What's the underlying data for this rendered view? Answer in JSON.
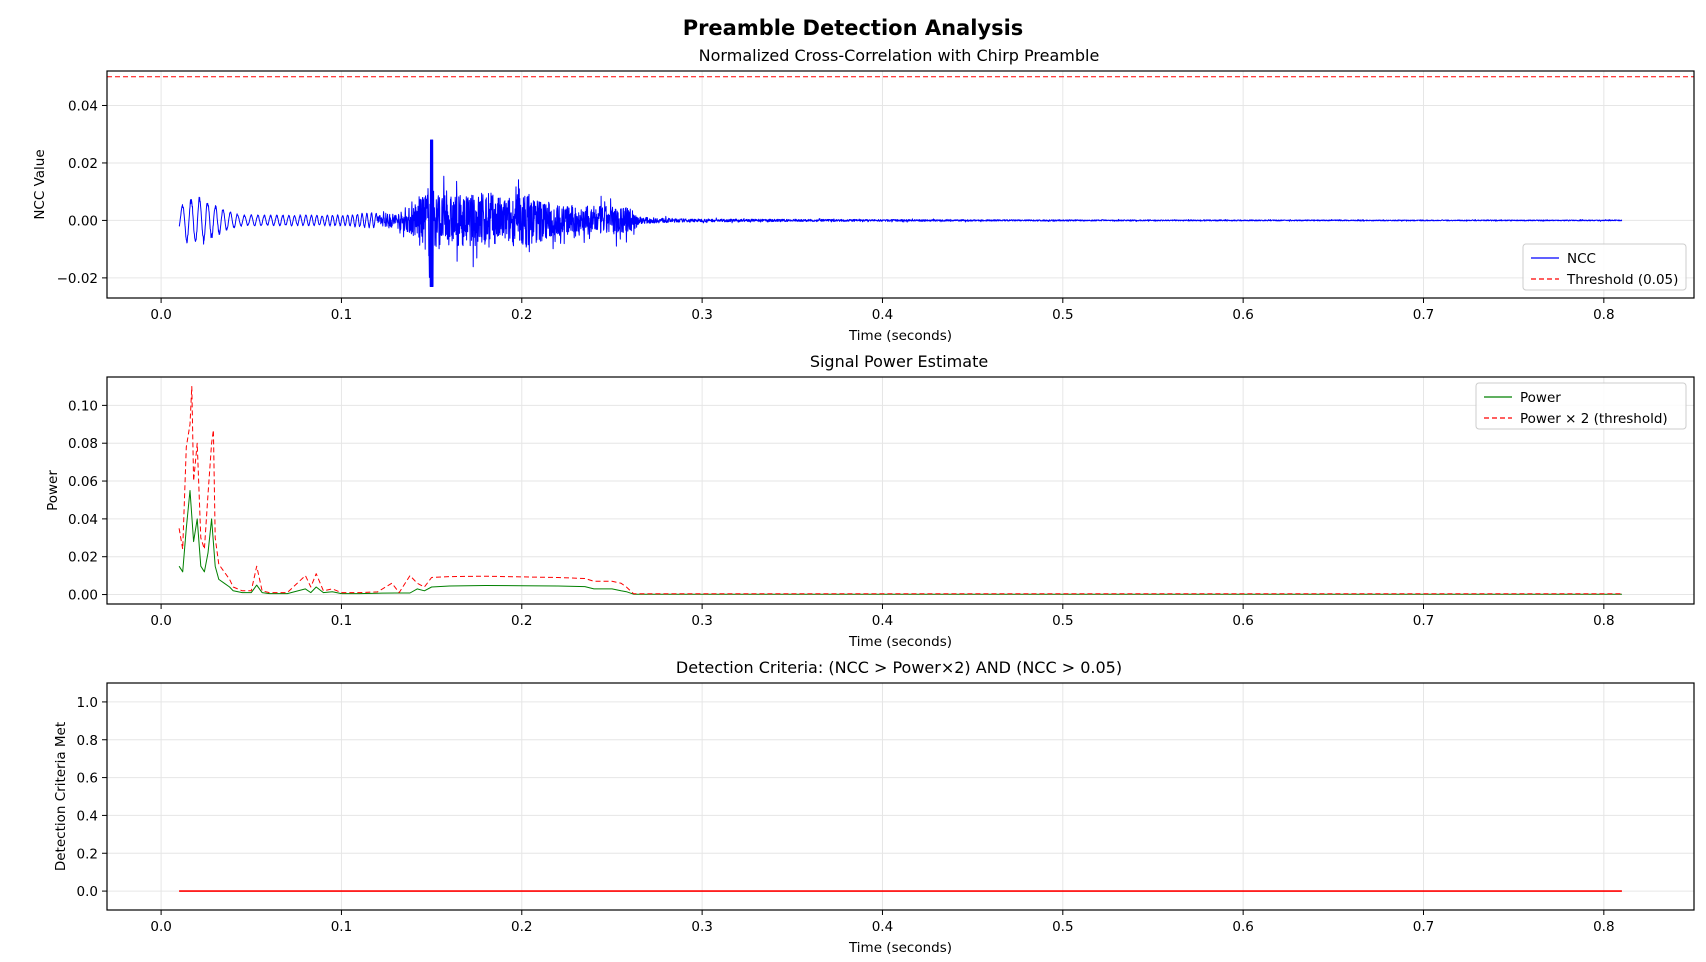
{
  "figure": {
    "title": "Preamble Detection Analysis"
  },
  "chart_data": [
    {
      "type": "line",
      "title": "Normalized Cross-Correlation with Chirp Preamble",
      "xlabel": "Time (seconds)",
      "ylabel": "NCC Value",
      "xlim": [
        -0.03,
        0.85
      ],
      "ylim": [
        -0.027,
        0.052
      ],
      "xticks": [
        0.0,
        0.1,
        0.2,
        0.3,
        0.4,
        0.5,
        0.6,
        0.7,
        0.8
      ],
      "xtick_labels": [
        "0.0",
        "0.1",
        "0.2",
        "0.3",
        "0.4",
        "0.5",
        "0.6",
        "0.7",
        "0.8"
      ],
      "yticks": [
        -0.02,
        0.0,
        0.02,
        0.04
      ],
      "ytick_labels": [
        "−0.02",
        "0.00",
        "0.02",
        "0.04"
      ],
      "grid": true,
      "legend": "lower-right",
      "series": [
        {
          "name": "NCC",
          "color": "#0000ff",
          "style": "solid",
          "x_range": [
            0.01,
            0.81
          ],
          "envelope": [
            [
              0.01,
              0.004
            ],
            [
              0.014,
              0.008
            ],
            [
              0.02,
              0.009
            ],
            [
              0.025,
              0.008
            ],
            [
              0.03,
              0.006
            ],
            [
              0.035,
              0.004
            ],
            [
              0.045,
              0.002
            ],
            [
              0.06,
              0.002
            ],
            [
              0.08,
              0.002
            ],
            [
              0.1,
              0.002
            ],
            [
              0.12,
              0.003
            ],
            [
              0.135,
              0.006
            ],
            [
              0.145,
              0.015
            ],
            [
              0.15,
              0.028
            ],
            [
              0.155,
              0.016
            ],
            [
              0.17,
              0.016
            ],
            [
              0.18,
              0.018
            ],
            [
              0.19,
              0.014
            ],
            [
              0.2,
              0.018
            ],
            [
              0.21,
              0.014
            ],
            [
              0.22,
              0.01
            ],
            [
              0.24,
              0.009
            ],
            [
              0.255,
              0.009
            ],
            [
              0.262,
              0.007
            ],
            [
              0.266,
              0.002
            ],
            [
              0.29,
              0.001
            ],
            [
              0.35,
              0.0007
            ],
            [
              0.5,
              0.0004
            ],
            [
              0.7,
              0.0003
            ],
            [
              0.81,
              0.0003
            ]
          ],
          "peak_max": 0.028,
          "peak_min": -0.023
        },
        {
          "name": "Threshold (0.05)",
          "color": "#ff0000",
          "style": "dashed",
          "y": 0.05
        }
      ]
    },
    {
      "type": "line",
      "title": "Signal Power Estimate",
      "xlabel": "Time (seconds)",
      "ylabel": "Power",
      "xlim": [
        -0.03,
        0.85
      ],
      "ylim": [
        -0.005,
        0.115
      ],
      "xticks": [
        0.0,
        0.1,
        0.2,
        0.3,
        0.4,
        0.5,
        0.6,
        0.7,
        0.8
      ],
      "xtick_labels": [
        "0.0",
        "0.1",
        "0.2",
        "0.3",
        "0.4",
        "0.5",
        "0.6",
        "0.7",
        "0.8"
      ],
      "yticks": [
        0.0,
        0.02,
        0.04,
        0.06,
        0.08,
        0.1
      ],
      "ytick_labels": [
        "0.00",
        "0.02",
        "0.04",
        "0.06",
        "0.08",
        "0.10"
      ],
      "grid": true,
      "legend": "upper-right",
      "series": [
        {
          "name": "Power",
          "color": "#008000",
          "style": "solid",
          "x": [
            0.01,
            0.012,
            0.014,
            0.016,
            0.018,
            0.02,
            0.022,
            0.024,
            0.026,
            0.028,
            0.03,
            0.032,
            0.035,
            0.038,
            0.04,
            0.045,
            0.05,
            0.053,
            0.056,
            0.06,
            0.07,
            0.08,
            0.083,
            0.086,
            0.09,
            0.095,
            0.1,
            0.11,
            0.12,
            0.13,
            0.138,
            0.142,
            0.146,
            0.15,
            0.16,
            0.18,
            0.2,
            0.22,
            0.235,
            0.24,
            0.25,
            0.255,
            0.258,
            0.262,
            0.27,
            0.3,
            0.4,
            0.5,
            0.6,
            0.7,
            0.81
          ],
          "y": [
            0.015,
            0.012,
            0.035,
            0.055,
            0.028,
            0.04,
            0.015,
            0.012,
            0.022,
            0.04,
            0.015,
            0.008,
            0.006,
            0.004,
            0.002,
            0.001,
            0.001,
            0.005,
            0.001,
            0.0005,
            0.0005,
            0.003,
            0.001,
            0.004,
            0.001,
            0.0015,
            0.0005,
            0.0005,
            0.0007,
            0.0008,
            0.0008,
            0.003,
            0.002,
            0.004,
            0.0045,
            0.0048,
            0.0047,
            0.0045,
            0.0042,
            0.003,
            0.003,
            0.002,
            0.0015,
            0.0002,
            0.0002,
            0.0002,
            0.0002,
            0.0002,
            0.0002,
            0.0002,
            0.0002
          ]
        },
        {
          "name": "Power × 2 (threshold)",
          "color": "#ff0000",
          "style": "dashed",
          "x": [
            0.01,
            0.012,
            0.014,
            0.016,
            0.017,
            0.018,
            0.02,
            0.022,
            0.024,
            0.026,
            0.028,
            0.029,
            0.03,
            0.032,
            0.035,
            0.038,
            0.04,
            0.045,
            0.05,
            0.053,
            0.056,
            0.06,
            0.07,
            0.08,
            0.083,
            0.086,
            0.09,
            0.095,
            0.1,
            0.11,
            0.12,
            0.128,
            0.132,
            0.138,
            0.142,
            0.146,
            0.15,
            0.16,
            0.18,
            0.2,
            0.22,
            0.235,
            0.24,
            0.25,
            0.255,
            0.258,
            0.262,
            0.27,
            0.3,
            0.4,
            0.5,
            0.6,
            0.7,
            0.81
          ],
          "y": [
            0.035,
            0.024,
            0.078,
            0.09,
            0.11,
            0.06,
            0.08,
            0.03,
            0.024,
            0.053,
            0.08,
            0.087,
            0.03,
            0.016,
            0.012,
            0.008,
            0.004,
            0.002,
            0.002,
            0.015,
            0.002,
            0.001,
            0.001,
            0.01,
            0.004,
            0.011,
            0.002,
            0.003,
            0.001,
            0.001,
            0.0014,
            0.006,
            0.001,
            0.01,
            0.006,
            0.004,
            0.009,
            0.0095,
            0.0097,
            0.0093,
            0.009,
            0.0085,
            0.007,
            0.007,
            0.006,
            0.004,
            0.0004,
            0.0004,
            0.0004,
            0.0004,
            0.0004,
            0.0004,
            0.0004,
            0.0004
          ]
        }
      ]
    },
    {
      "type": "line",
      "title": "Detection Criteria: (NCC > Power×2) AND (NCC > 0.05)",
      "xlabel": "Time (seconds)",
      "ylabel": "Detection Criteria Met",
      "xlim": [
        -0.03,
        0.85
      ],
      "ylim": [
        -0.1,
        1.1
      ],
      "xticks": [
        0.0,
        0.1,
        0.2,
        0.3,
        0.4,
        0.5,
        0.6,
        0.7,
        0.8
      ],
      "xtick_labels": [
        "0.0",
        "0.1",
        "0.2",
        "0.3",
        "0.4",
        "0.5",
        "0.6",
        "0.7",
        "0.8"
      ],
      "yticks": [
        0.0,
        0.2,
        0.4,
        0.6,
        0.8,
        1.0
      ],
      "ytick_labels": [
        "0.0",
        "0.2",
        "0.4",
        "0.6",
        "0.8",
        "1.0"
      ],
      "grid": true,
      "series": [
        {
          "color": "#ff0000",
          "style": "solid",
          "x": [
            0.01,
            0.81
          ],
          "y": [
            0,
            0
          ]
        }
      ]
    }
  ]
}
